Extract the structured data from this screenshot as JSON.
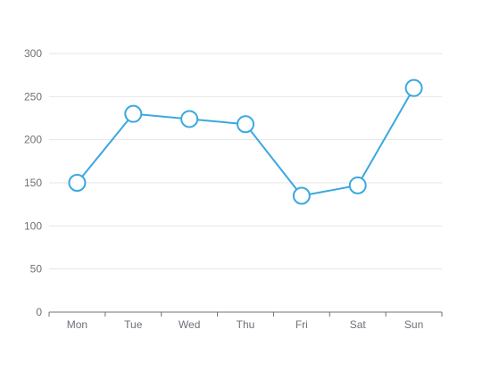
{
  "chart_data": {
    "type": "line",
    "categories": [
      "Mon",
      "Tue",
      "Wed",
      "Thu",
      "Fri",
      "Sat",
      "Sun"
    ],
    "series": [
      {
        "values": [
          150,
          230,
          224,
          218,
          135,
          147,
          260
        ]
      }
    ],
    "ylim": [
      0,
      300
    ],
    "yticks": [
      0,
      50,
      100,
      150,
      200,
      250,
      300
    ],
    "grid": true,
    "colors": {
      "line": "#3ba8e0",
      "marker_fill": "#ffffff",
      "grid": "#e6e6e6",
      "axis": "#6e7079",
      "label": "#6e7079"
    }
  }
}
